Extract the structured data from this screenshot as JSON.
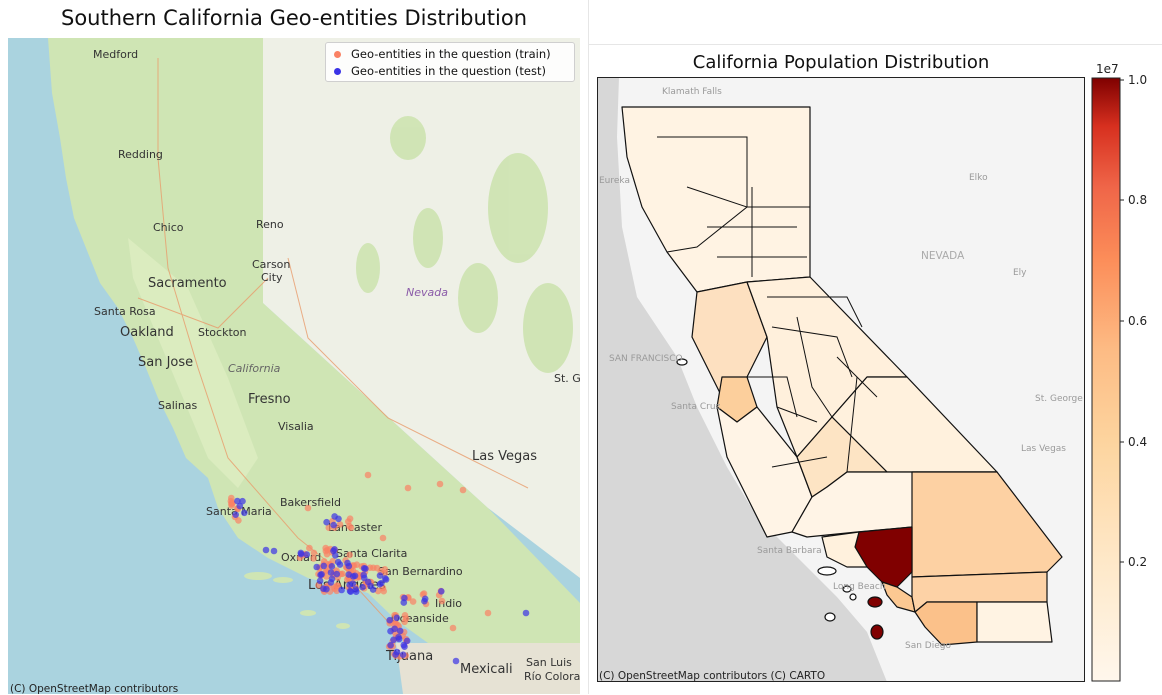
{
  "left_map": {
    "title": "Southern California Geo-entities Distribution",
    "attribution": "(C) OpenStreetMap contributors",
    "legend": [
      {
        "label": "Geo-entities in the question (train)",
        "color": "#fa8264"
      },
      {
        "label": "Geo-entities in the question (test)",
        "color": "#3a33e6"
      }
    ],
    "place_labels": [
      "Medford",
      "Redding",
      "Chico",
      "Reno",
      "Carson City",
      "Sacramento",
      "Santa Rosa",
      "Oakland",
      "Stockton",
      "San Jose",
      "California",
      "Nevada",
      "Fresno",
      "Salinas",
      "Visalia",
      "St. G",
      "Las Vegas",
      "Bakersfield",
      "Santa Maria",
      "Lancaster",
      "Santa Clarita",
      "Oxnard",
      "San Bernardino",
      "Los Angeles",
      "Indio",
      "Oceanside",
      "Tijuana",
      "Mexicali",
      "San Luis Rio Colorado"
    ],
    "colors": {
      "ocean": "#aad3df",
      "land": "#cde7b4",
      "nevada": "#f1efe6"
    }
  },
  "right_map": {
    "title": "California Population Distribution",
    "attribution": "(C) OpenStreetMap contributors (C) CARTO",
    "place_labels": [
      "Klamath Falls",
      "Eureka",
      "Elko",
      "NEVADA",
      "Ely",
      "SAN FRANCISCO",
      "St. George",
      "Santa Cruz",
      "Santa Barbara",
      "Long Beach",
      "San Diego",
      "Las Vegas"
    ],
    "colorbar": {
      "multiplier": "1e7",
      "ticks": [
        "0.2",
        "0.4",
        "0.6",
        "0.8",
        "1.0"
      ],
      "colormap": "OrRd",
      "range": [
        0,
        10000000
      ]
    },
    "colors": {
      "background": "#f4f4f4",
      "ocean": "#d6d6d6",
      "high": "#800000",
      "low": "#fff3e3"
    }
  }
}
